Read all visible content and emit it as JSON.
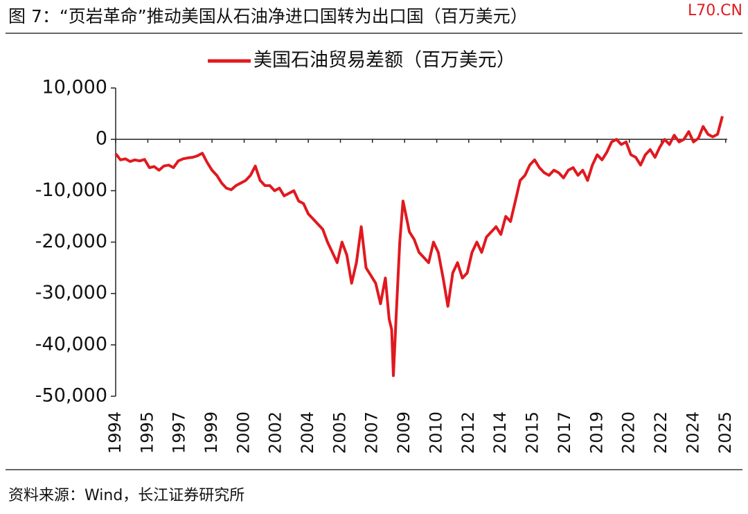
{
  "chart_data": {
    "type": "line",
    "title": "图 7：“页岩革命”推动美国从石油净进口国转为出口国（百万美元）",
    "watermark": "L70.CN",
    "source": "资料来源：Wind，长江证券研究所",
    "legend": "top",
    "series": [
      {
        "name": "美国石油贸易差额（百万美元）",
        "color": "#e0191f",
        "x": [
          1994.0,
          1994.25,
          1994.5,
          1994.75,
          1995.0,
          1995.25,
          1995.5,
          1995.75,
          1996.0,
          1996.25,
          1996.5,
          1996.75,
          1997.0,
          1997.25,
          1997.5,
          1997.75,
          1998.0,
          1998.25,
          1998.5,
          1998.75,
          1999.0,
          1999.25,
          1999.5,
          1999.75,
          2000.0,
          2000.25,
          2000.5,
          2000.75,
          2001.0,
          2001.25,
          2001.5,
          2001.75,
          2002.0,
          2002.25,
          2002.5,
          2002.75,
          2003.0,
          2003.25,
          2003.5,
          2003.75,
          2004.0,
          2004.25,
          2004.5,
          2004.75,
          2005.0,
          2005.25,
          2005.5,
          2005.75,
          2006.0,
          2006.25,
          2006.5,
          2006.75,
          2007.0,
          2007.25,
          2007.5,
          2007.75,
          2008.0,
          2008.2,
          2008.33,
          2008.42,
          2008.58,
          2008.75,
          2008.92,
          2009.25,
          2009.5,
          2009.75,
          2010.0,
          2010.25,
          2010.5,
          2010.75,
          2011.0,
          2011.25,
          2011.5,
          2011.75,
          2012.0,
          2012.25,
          2012.5,
          2012.75,
          2013.0,
          2013.25,
          2013.5,
          2013.75,
          2014.0,
          2014.25,
          2014.5,
          2014.75,
          2015.0,
          2015.25,
          2015.5,
          2015.75,
          2016.0,
          2016.25,
          2016.5,
          2016.75,
          2017.0,
          2017.25,
          2017.5,
          2017.75,
          2018.0,
          2018.25,
          2018.5,
          2018.75,
          2019.0,
          2019.25,
          2019.5,
          2019.75,
          2020.0,
          2020.25,
          2020.5,
          2020.75,
          2021.0,
          2021.25,
          2021.5,
          2021.75,
          2022.0,
          2022.25,
          2022.5,
          2022.75,
          2023.0,
          2023.25,
          2023.5,
          2023.75,
          2024.0,
          2024.25,
          2024.5,
          2024.75,
          2025.0,
          2025.25,
          2025.5
        ],
        "values": [
          -2800,
          -4000,
          -3800,
          -4300,
          -4000,
          -4200,
          -3900,
          -5500,
          -5300,
          -6000,
          -5200,
          -5000,
          -5500,
          -4200,
          -3800,
          -3600,
          -3500,
          -3200,
          -2700,
          -4500,
          -6000,
          -7000,
          -8500,
          -9500,
          -9800,
          -9000,
          -8500,
          -8000,
          -7000,
          -5200,
          -8000,
          -9000,
          -9000,
          -10000,
          -9500,
          -11000,
          -10500,
          -10000,
          -12000,
          -12500,
          -14500,
          -15500,
          -16500,
          -17500,
          -20000,
          -22000,
          -24000,
          -20000,
          -22500,
          -28000,
          -24000,
          -17000,
          -25000,
          -26500,
          -28000,
          -32000,
          -27000,
          -35000,
          -37000,
          -46000,
          -33000,
          -20000,
          -12000,
          -18000,
          -19500,
          -22000,
          -23000,
          -24000,
          -20000,
          -22000,
          -27000,
          -32500,
          -26000,
          -24000,
          -27000,
          -26000,
          -22000,
          -20000,
          -22000,
          -19000,
          -18000,
          -17000,
          -18500,
          -15000,
          -16000,
          -12000,
          -8000,
          -7000,
          -5000,
          -4000,
          -5500,
          -6500,
          -7000,
          -6000,
          -6500,
          -7500,
          -6000,
          -5500,
          -7000,
          -6000,
          -8000,
          -5000,
          -3000,
          -4000,
          -2500,
          -500,
          0,
          -1000,
          -500,
          -3000,
          -3500,
          -5000,
          -3000,
          -2000,
          -3500,
          -1500,
          0,
          -1000,
          800,
          -500,
          0,
          1500,
          -500,
          200,
          2500,
          1000,
          500,
          1000,
          4500
        ]
      }
    ],
    "xlim": [
      1994.0,
      2025.75
    ],
    "xticks": [
      {
        "value": 1994.0,
        "label": "1994"
      },
      {
        "value": 1995.67,
        "label": "1995"
      },
      {
        "value": 1997.33,
        "label": "1997"
      },
      {
        "value": 1999.0,
        "label": "1999"
      },
      {
        "value": 2000.67,
        "label": "2000"
      },
      {
        "value": 2002.33,
        "label": "2002"
      },
      {
        "value": 2004.0,
        "label": "2004"
      },
      {
        "value": 2005.67,
        "label": "2005"
      },
      {
        "value": 2007.33,
        "label": "2007"
      },
      {
        "value": 2009.0,
        "label": "2009"
      },
      {
        "value": 2010.67,
        "label": "2010"
      },
      {
        "value": 2012.33,
        "label": "2012"
      },
      {
        "value": 2014.0,
        "label": "2014"
      },
      {
        "value": 2015.67,
        "label": "2015"
      },
      {
        "value": 2017.33,
        "label": "2017"
      },
      {
        "value": 2019.0,
        "label": "2019"
      },
      {
        "value": 2020.67,
        "label": "2020"
      },
      {
        "value": 2022.33,
        "label": "2022"
      },
      {
        "value": 2024.0,
        "label": "2024"
      },
      {
        "value": 2025.67,
        "label": "2025"
      }
    ],
    "ylim": [
      -50000,
      10000
    ],
    "yticks": [
      {
        "value": -50000,
        "label": "-50,000"
      },
      {
        "value": -40000,
        "label": "-40,000"
      },
      {
        "value": -30000,
        "label": "-30,000"
      },
      {
        "value": -20000,
        "label": "-20,000"
      },
      {
        "value": -10000,
        "label": "-10,000"
      },
      0,
      {
        "value": 10000,
        "label": "10,000"
      }
    ],
    "grid": false
  }
}
